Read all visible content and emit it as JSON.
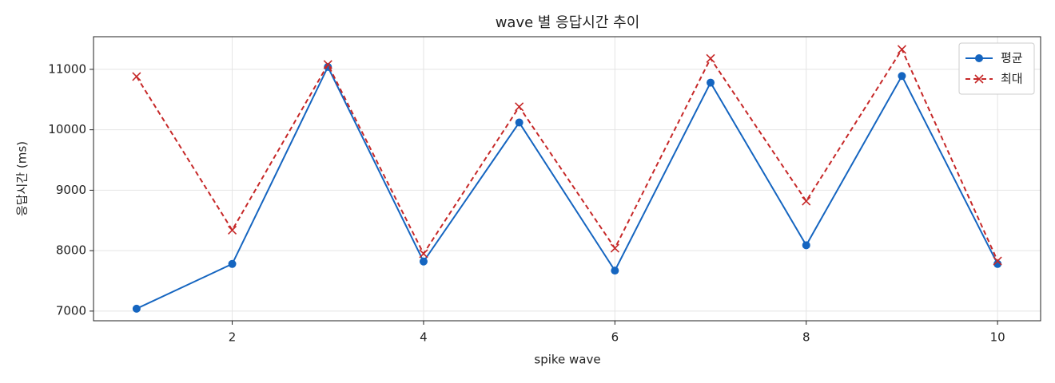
{
  "chart_data": {
    "type": "line",
    "title": "wave 별 응답시간 추이",
    "x_label": "spike wave",
    "y_label": "응답시간 (ms)",
    "x": [
      1,
      2,
      3,
      4,
      5,
      6,
      7,
      8,
      9,
      10
    ],
    "series": [
      {
        "name": "평균",
        "color": "#1565c0",
        "marker": "o",
        "linestyle": "solid",
        "values": [
          7040,
          7780,
          11040,
          7820,
          10120,
          7670,
          10780,
          8090,
          10890,
          7780
        ]
      },
      {
        "name": "최대",
        "color": "#c62828",
        "marker": "x",
        "linestyle": "dashed",
        "values": [
          10880,
          8340,
          11080,
          7950,
          10380,
          8040,
          11180,
          8820,
          11330,
          7830
        ]
      }
    ],
    "xlim": [
      0.55,
      10.45
    ],
    "xticks": [
      2,
      4,
      6,
      8,
      10
    ],
    "ylim": [
      6840,
      11540
    ],
    "yticks": [
      7000,
      8000,
      9000,
      10000,
      11000
    ],
    "grid": true,
    "legend": "upper right"
  }
}
